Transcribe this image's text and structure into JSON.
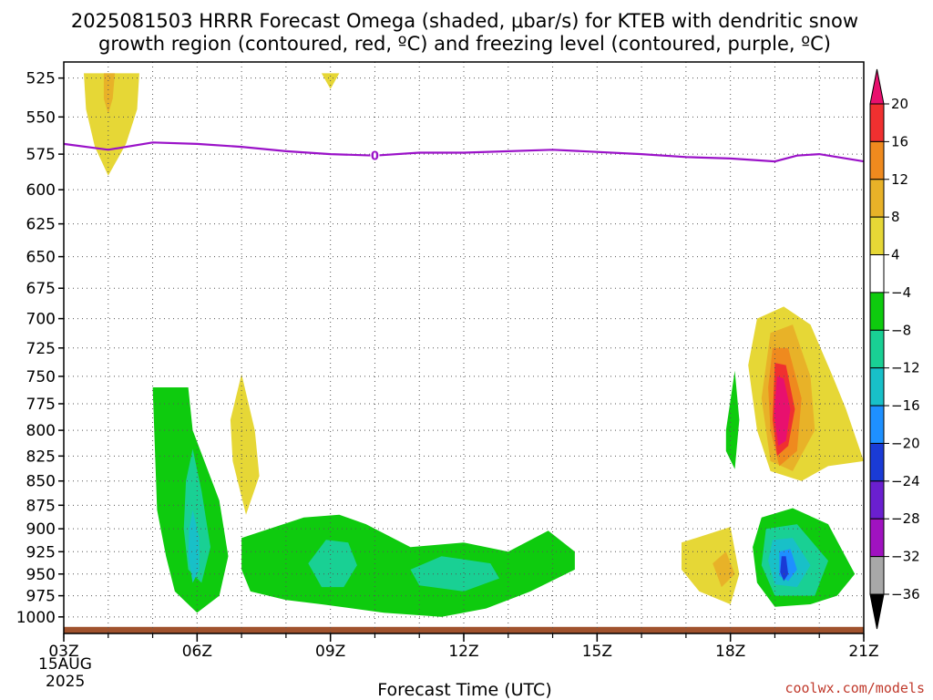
{
  "chart_data": {
    "type": "contour",
    "title_line1": "2025081503 HRRR Forecast Omega (shaded, μbar/s) for KTEB with dendritic snow",
    "title_line2": "growth region (contoured, red, ºC) and freezing level (contoured, purple, ºC)",
    "xlabel": "Forecast Time (UTC)",
    "x_ticks": [
      {
        "hour": 3,
        "label": "03Z"
      },
      {
        "hour": 6,
        "label": "06Z"
      },
      {
        "hour": 9,
        "label": "09Z"
      },
      {
        "hour": 12,
        "label": "12Z"
      },
      {
        "hour": 15,
        "label": "15Z"
      },
      {
        "hour": 18,
        "label": "18Z"
      },
      {
        "hour": 21,
        "label": "21Z"
      }
    ],
    "date_label_1": "15AUG",
    "date_label_2": "2025",
    "xlim": [
      3,
      21
    ],
    "ylim": [
      1020,
      515
    ],
    "y_scale": "log-pressure",
    "y_ticks": [
      525,
      550,
      575,
      600,
      625,
      650,
      675,
      700,
      725,
      750,
      775,
      800,
      825,
      850,
      875,
      900,
      925,
      950,
      975,
      1000
    ],
    "grid": true,
    "freezing_level": {
      "label": "0",
      "color": "#9a12c8",
      "points": [
        [
          3,
          568
        ],
        [
          4,
          572
        ],
        [
          5,
          567
        ],
        [
          6,
          568
        ],
        [
          7,
          570
        ],
        [
          8,
          573
        ],
        [
          9,
          575
        ],
        [
          10,
          576
        ],
        [
          11,
          574
        ],
        [
          12,
          574
        ],
        [
          14,
          572
        ],
        [
          16,
          575
        ],
        [
          17,
          577
        ],
        [
          18,
          578
        ],
        [
          19,
          580
        ],
        [
          19.5,
          576
        ],
        [
          20,
          575
        ],
        [
          21,
          580
        ]
      ]
    },
    "surface": {
      "color": "#a0522d",
      "top_pressure": 1012
    },
    "omega_regions": [
      {
        "level": 4,
        "color": "#e6d736",
        "points": [
          [
            3.45,
            522
          ],
          [
            4.7,
            522
          ],
          [
            4.65,
            545
          ],
          [
            4.4,
            568
          ],
          [
            4.0,
            590
          ],
          [
            3.7,
            570
          ],
          [
            3.5,
            545
          ]
        ]
      },
      {
        "level": 8,
        "color": "#e8b228",
        "points": [
          [
            3.9,
            522
          ],
          [
            4.15,
            522
          ],
          [
            4.1,
            538
          ],
          [
            4.0,
            548
          ],
          [
            3.9,
            538
          ]
        ]
      },
      {
        "level": 4,
        "color": "#e6d736",
        "points": [
          [
            8.8,
            522
          ],
          [
            9.2,
            522
          ],
          [
            9.0,
            532
          ]
        ]
      },
      {
        "level": 4,
        "color": "#e6d736",
        "points": [
          [
            7.0,
            748
          ],
          [
            7.3,
            800
          ],
          [
            7.4,
            845
          ],
          [
            7.1,
            885
          ],
          [
            6.8,
            830
          ],
          [
            6.75,
            790
          ]
        ]
      },
      {
        "level": -4,
        "color": "#0ecb0e",
        "points": [
          [
            5.0,
            760
          ],
          [
            5.8,
            760
          ],
          [
            5.9,
            800
          ],
          [
            6.5,
            870
          ],
          [
            6.7,
            930
          ],
          [
            6.5,
            975
          ],
          [
            6.0,
            995
          ],
          [
            5.5,
            970
          ],
          [
            5.3,
            930
          ],
          [
            5.1,
            880
          ]
        ]
      },
      {
        "level": -8,
        "color": "#19d094",
        "points": [
          [
            5.9,
            818
          ],
          [
            6.1,
            860
          ],
          [
            6.3,
            920
          ],
          [
            6.1,
            960
          ],
          [
            5.8,
            945
          ],
          [
            5.7,
            900
          ],
          [
            5.75,
            850
          ]
        ]
      },
      {
        "level": -12,
        "color": "#18c0c8",
        "points": [
          [
            5.9,
            880
          ],
          [
            6.05,
            910
          ],
          [
            6.05,
            945
          ],
          [
            5.9,
            960
          ],
          [
            5.8,
            930
          ],
          [
            5.82,
            900
          ]
        ]
      },
      {
        "level": -4,
        "color": "#0ecb0e",
        "points": [
          [
            7.0,
            910
          ],
          [
            8.4,
            888
          ],
          [
            9.2,
            885
          ],
          [
            9.8,
            895
          ],
          [
            10.8,
            920
          ],
          [
            12.0,
            915
          ],
          [
            13.0,
            925
          ],
          [
            13.9,
            902
          ],
          [
            14.5,
            925
          ],
          [
            14.5,
            945
          ],
          [
            13.5,
            970
          ],
          [
            12.5,
            990
          ],
          [
            11.5,
            1000
          ],
          [
            10.2,
            995
          ],
          [
            8.8,
            985
          ],
          [
            8.0,
            980
          ],
          [
            7.2,
            970
          ],
          [
            7.0,
            945
          ]
        ]
      },
      {
        "level": -8,
        "color": "#19d094",
        "points": [
          [
            8.5,
            938
          ],
          [
            8.9,
            912
          ],
          [
            9.4,
            915
          ],
          [
            9.6,
            940
          ],
          [
            9.3,
            965
          ],
          [
            8.8,
            965
          ]
        ]
      },
      {
        "level": -8,
        "color": "#19d094",
        "points": [
          [
            10.8,
            945
          ],
          [
            11.5,
            930
          ],
          [
            12.6,
            938
          ],
          [
            12.8,
            955
          ],
          [
            12.0,
            970
          ],
          [
            11.0,
            963
          ]
        ]
      },
      {
        "level": 4,
        "color": "#e6d736",
        "points": [
          [
            16.9,
            915
          ],
          [
            18.0,
            898
          ],
          [
            18.2,
            950
          ],
          [
            18.0,
            985
          ],
          [
            17.3,
            970
          ],
          [
            16.9,
            945
          ]
        ]
      },
      {
        "level": 8,
        "color": "#e8b228",
        "points": [
          [
            17.6,
            938
          ],
          [
            17.9,
            925
          ],
          [
            18.1,
            950
          ],
          [
            17.8,
            965
          ]
        ]
      },
      {
        "level": -4,
        "color": "#0ecb0e",
        "points": [
          [
            17.9,
            800
          ],
          [
            18.1,
            745
          ],
          [
            18.2,
            790
          ],
          [
            18.1,
            838
          ],
          [
            17.9,
            820
          ]
        ]
      },
      {
        "level": 4,
        "color": "#e6d736",
        "points": [
          [
            18.6,
            700
          ],
          [
            19.2,
            690
          ],
          [
            19.8,
            705
          ],
          [
            20.3,
            750
          ],
          [
            20.6,
            780
          ],
          [
            21.0,
            830
          ],
          [
            20.2,
            835
          ],
          [
            19.6,
            850
          ],
          [
            18.9,
            840
          ],
          [
            18.6,
            800
          ],
          [
            18.4,
            740
          ]
        ]
      },
      {
        "level": 8,
        "color": "#e8b228",
        "points": [
          [
            18.9,
            712
          ],
          [
            19.4,
            705
          ],
          [
            19.8,
            750
          ],
          [
            19.9,
            800
          ],
          [
            19.4,
            840
          ],
          [
            18.9,
            830
          ],
          [
            18.7,
            770
          ]
        ]
      },
      {
        "level": 12,
        "color": "#ef8a1e",
        "points": [
          [
            18.95,
            725
          ],
          [
            19.3,
            725
          ],
          [
            19.6,
            770
          ],
          [
            19.5,
            820
          ],
          [
            19.1,
            835
          ],
          [
            18.9,
            800
          ],
          [
            18.85,
            760
          ]
        ]
      },
      {
        "level": 16,
        "color": "#f03030",
        "points": [
          [
            19.0,
            738
          ],
          [
            19.25,
            740
          ],
          [
            19.45,
            780
          ],
          [
            19.3,
            815
          ],
          [
            19.05,
            825
          ],
          [
            18.95,
            790
          ]
        ]
      },
      {
        "level": 20,
        "color": "#e8106e",
        "points": [
          [
            19.05,
            750
          ],
          [
            19.2,
            752
          ],
          [
            19.35,
            780
          ],
          [
            19.25,
            810
          ],
          [
            19.08,
            815
          ],
          [
            18.98,
            785
          ]
        ]
      },
      {
        "level": -4,
        "color": "#0ecb0e",
        "points": [
          [
            18.7,
            888
          ],
          [
            19.4,
            878
          ],
          [
            20.2,
            895
          ],
          [
            20.8,
            950
          ],
          [
            20.4,
            975
          ],
          [
            19.8,
            985
          ],
          [
            19.0,
            988
          ],
          [
            18.6,
            960
          ],
          [
            18.5,
            920
          ]
        ]
      },
      {
        "level": -8,
        "color": "#19d094",
        "points": [
          [
            18.8,
            900
          ],
          [
            19.5,
            895
          ],
          [
            20.2,
            935
          ],
          [
            19.9,
            975
          ],
          [
            19.0,
            975
          ],
          [
            18.7,
            940
          ]
        ]
      },
      {
        "level": -12,
        "color": "#18c0c8",
        "points": [
          [
            18.95,
            912
          ],
          [
            19.4,
            910
          ],
          [
            19.8,
            940
          ],
          [
            19.5,
            965
          ],
          [
            19.0,
            962
          ],
          [
            18.85,
            935
          ]
        ]
      },
      {
        "level": -16,
        "color": "#1e90ff",
        "points": [
          [
            19.1,
            925
          ],
          [
            19.35,
            922
          ],
          [
            19.5,
            945
          ],
          [
            19.3,
            958
          ],
          [
            19.1,
            952
          ]
        ]
      },
      {
        "level": -20,
        "color": "#1a3bd6",
        "points": [
          [
            19.15,
            930
          ],
          [
            19.25,
            930
          ],
          [
            19.3,
            950
          ],
          [
            19.2,
            958
          ],
          [
            19.12,
            948
          ]
        ]
      }
    ],
    "colorbar": {
      "levels": [
        {
          "label": "20",
          "color": "#f03030"
        },
        {
          "label": "16",
          "color": "#ef8a1e"
        },
        {
          "label": "12",
          "color": "#e8b228"
        },
        {
          "label": "8",
          "color": "#e6d736"
        },
        {
          "label": "4",
          "color": "#ffffff"
        },
        {
          "label": "−4",
          "color": "#0ecb0e"
        },
        {
          "label": "−8",
          "color": "#19d094"
        },
        {
          "label": "−12",
          "color": "#18c0c8"
        },
        {
          "label": "−16",
          "color": "#1e90ff"
        },
        {
          "label": "−20",
          "color": "#1a3bd6"
        },
        {
          "label": "−24",
          "color": "#6a1fd0"
        },
        {
          "label": "−28",
          "color": "#a012c0"
        },
        {
          "label": "−32",
          "color": "#a8a8a8"
        },
        {
          "label": "−36",
          "color": null
        }
      ],
      "top_cap_color": "#e8106e",
      "bottom_cap_color": "#000000"
    },
    "credit": "coolwx.com/models"
  }
}
